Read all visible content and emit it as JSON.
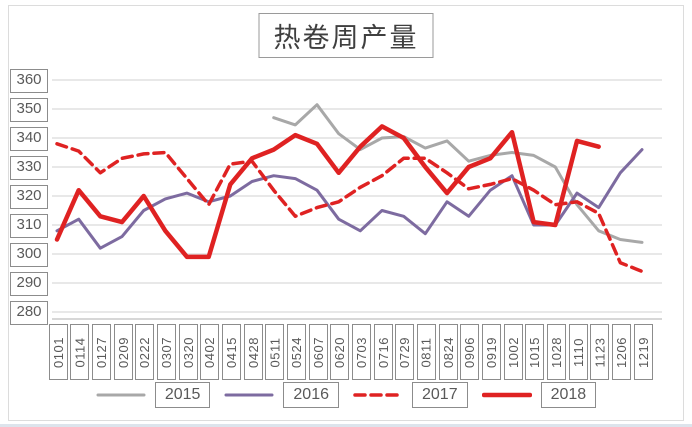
{
  "title": "热卷周产量",
  "chart_data": {
    "type": "line",
    "title": "热卷周产量",
    "x_labels": [
      "0101",
      "0114",
      "0127",
      "0209",
      "0222",
      "0307",
      "0320",
      "0402",
      "0415",
      "0428",
      "0511",
      "0524",
      "0607",
      "0620",
      "0703",
      "0716",
      "0729",
      "0811",
      "0824",
      "0906",
      "0919",
      "1002",
      "1015",
      "1028",
      "1110",
      "1123",
      "1206",
      "1219"
    ],
    "yticks": [
      360,
      350,
      340,
      330,
      320,
      310,
      300,
      290,
      280
    ],
    "ylim": [
      280,
      360
    ],
    "grid": true,
    "legend_position": "bottom",
    "series": [
      {
        "name": "2015",
        "color": "#a8a8a8",
        "style": "solid",
        "width": 3,
        "values": [
          null,
          null,
          null,
          null,
          null,
          null,
          null,
          null,
          null,
          null,
          347,
          344.5,
          351.5,
          341.5,
          336,
          340,
          340.5,
          336.5,
          339,
          332,
          334,
          335,
          334,
          330,
          317,
          308,
          305,
          304
        ]
      },
      {
        "name": "2016",
        "color": "#7d6ba0",
        "style": "solid",
        "width": 3,
        "values": [
          308,
          312,
          302,
          306,
          315,
          319,
          321,
          318,
          320,
          325,
          327,
          326,
          322,
          312,
          308,
          315,
          313,
          307,
          318,
          313,
          322,
          327,
          310,
          310,
          321,
          316,
          328,
          336
        ]
      },
      {
        "name": "2017",
        "color": "#df2222",
        "style": "dashed",
        "width": 3.5,
        "values": [
          338,
          335.5,
          328,
          333,
          334.5,
          335,
          326,
          317,
          331,
          332,
          322,
          313,
          316,
          318,
          323,
          327,
          333,
          333,
          328,
          322.5,
          324,
          326,
          322,
          317,
          318,
          314,
          297,
          294
        ]
      },
      {
        "name": "2018",
        "color": "#df2222",
        "style": "solid",
        "width": 4.5,
        "values": [
          305,
          322,
          313,
          311,
          320,
          308,
          299,
          299,
          324,
          333,
          336,
          341,
          338,
          328,
          337,
          344,
          340,
          330,
          321,
          330,
          333,
          342,
          311,
          310,
          339,
          337,
          null,
          null
        ]
      }
    ]
  },
  "colors": {
    "gridline": "#d9d9d9",
    "axis_line": "#bfbfbf",
    "tick_text": "#595959",
    "box_border": "#8c8c8c",
    "title_text": "#3f3f3f"
  }
}
